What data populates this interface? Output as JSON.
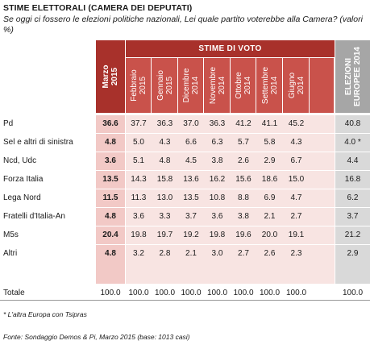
{
  "title": "STIME ELETTORALI  (CAMERA DEI DEPUTATI)",
  "question": "Se oggi ci fossero le elezioni politiche nazionali, Lei quale partito voterebbe alla Camera? (valori %)",
  "footnote": "* L'altra Europa con Tsipras",
  "source": "Fonte: Sondaggio Demos & Pi, Marzo 2015 (base: 1013 casi)",
  "colors": {
    "header_dark": "#a8312b",
    "header_mid": "#c9524b",
    "header_gray": "#a6a6a6",
    "current_band": "#f2c9c6",
    "poll_band": "#f8e4e2",
    "ee_band": "#d9d9d9"
  },
  "chart_data": {
    "type": "table",
    "group_header": "STIME DI VOTO",
    "columns": [
      "Marzo 2015",
      "Febbraio 2015",
      "Gennaio 2015",
      "Dicembre 2014",
      "Novembre 2014",
      "Ottobre 2014",
      "Settembre 2014",
      "Giugno 2014",
      "ELEZIONI EUROPEE 2014"
    ],
    "rows": [
      {
        "party": "Pd",
        "values": [
          "36.6",
          "37.7",
          "36.3",
          "37.0",
          "36.3",
          "41.2",
          "41.1",
          "45.2",
          "40.8"
        ]
      },
      {
        "party": "Sel e altri di sinistra",
        "values": [
          "4.8",
          "5.0",
          "4.3",
          "6.6",
          "6.3",
          "5.7",
          "5.8",
          "4.3",
          "4.0 *"
        ]
      },
      {
        "party": "Ncd, Udc",
        "values": [
          "3.6",
          "5.1",
          "4.8",
          "4.5",
          "3.8",
          "2.6",
          "2.9",
          "6.7",
          "4.4"
        ]
      },
      {
        "party": "Forza Italia",
        "values": [
          "13.5",
          "14.3",
          "15.8",
          "13.6",
          "16.2",
          "15.6",
          "18.6",
          "15.0",
          "16.8"
        ]
      },
      {
        "party": "Lega Nord",
        "values": [
          "11.5",
          "11.3",
          "13.0",
          "13.5",
          "10.8",
          "8.8",
          "6.9",
          "4.7",
          "6.2"
        ]
      },
      {
        "party": "Fratelli d'Italia-An",
        "values": [
          "4.8",
          "3.6",
          "3.3",
          "3.7",
          "3.6",
          "3.8",
          "2.1",
          "2.7",
          "3.7"
        ]
      },
      {
        "party": "M5s",
        "values": [
          "20.4",
          "19.8",
          "19.7",
          "19.2",
          "19.8",
          "19.6",
          "20.0",
          "19.1",
          "21.2"
        ]
      },
      {
        "party": "Altri",
        "values": [
          "4.8",
          "3.2",
          "2.8",
          "2.1",
          "3.0",
          "2.7",
          "2.6",
          "2.3",
          "2.9"
        ]
      },
      {
        "party": "Totale",
        "values": [
          "100.0",
          "100.0",
          "100.0",
          "100.0",
          "100.0",
          "100.0",
          "100.0",
          "100.0",
          "100.0"
        ]
      }
    ]
  }
}
